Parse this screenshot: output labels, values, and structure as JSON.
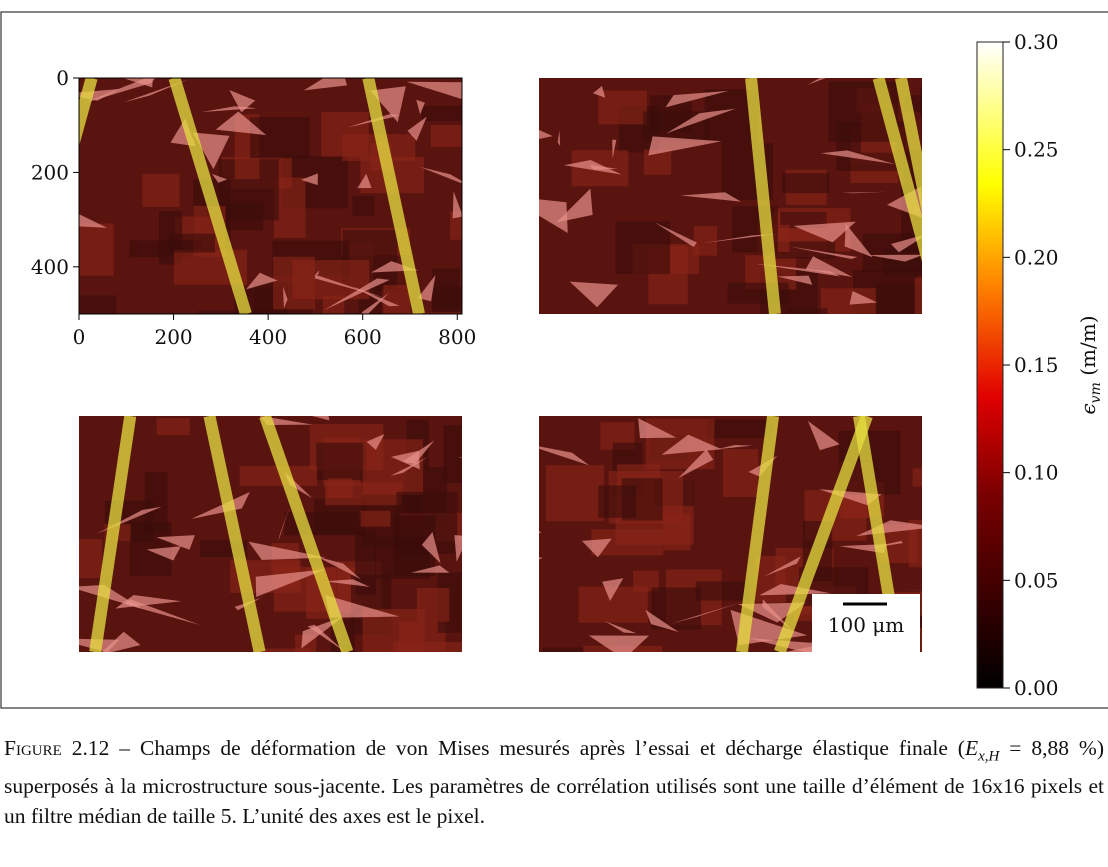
{
  "figure": {
    "axes": {
      "xlim": [
        0,
        810
      ],
      "xticks": [
        0,
        200,
        400,
        600,
        800
      ],
      "ylim": [
        0,
        500
      ],
      "yticks": [
        0,
        200,
        400
      ]
    },
    "colorbar": {
      "clim": [
        0,
        0.3
      ],
      "ticks": [
        {
          "value": 0,
          "label": "0.00"
        },
        {
          "value": 0.05,
          "label": "0.05"
        },
        {
          "value": 0.1,
          "label": "0.10"
        },
        {
          "value": 0.15,
          "label": "0.15"
        },
        {
          "value": 0.2,
          "label": "0.20"
        },
        {
          "value": 0.25,
          "label": "0.25"
        },
        {
          "value": 0.3,
          "label": "0.30"
        }
      ],
      "label_symbol": "ϵ",
      "label_subscript": "vm",
      "label_unit": "(m/m)"
    },
    "scale_bar": "100 μm"
  },
  "caption": {
    "label": "Figure 2.12 –",
    "text_before": "Champs de déformation de von Mises mesurés après l’essai et décharge élastique finale (",
    "symbol": "E",
    "symbol_subscript": "x,H",
    "text_after": " = 8,88 %) superposés à la microstructure sous-jacente. Les paramètres de corrélation utilisés sont une taille d’élément de 16x16 pixels et un filtre médian de taille 5. L’unité des axes est le pixel."
  }
}
